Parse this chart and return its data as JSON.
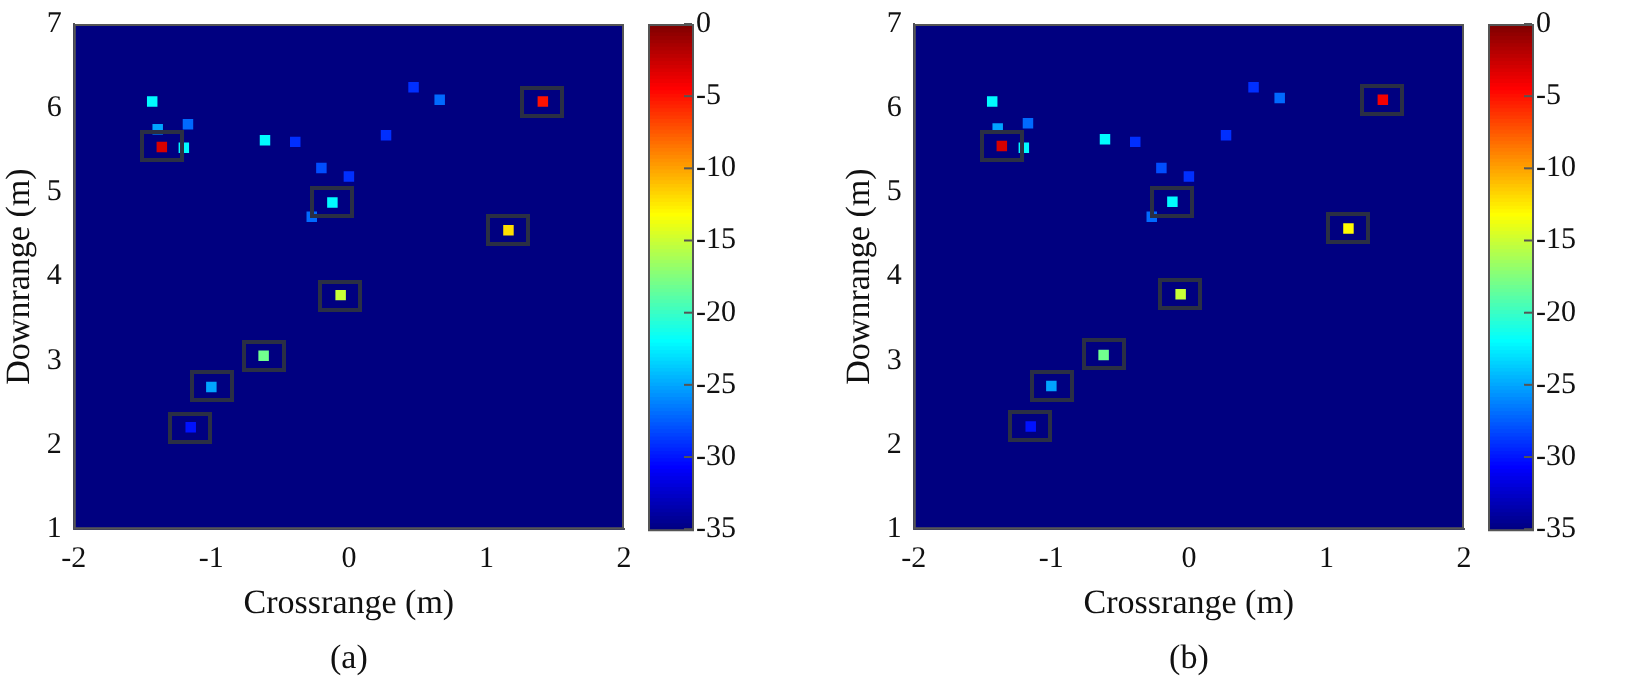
{
  "chart_data": [
    {
      "type": "scatter",
      "xlabel": "Crossrange (m)",
      "ylabel": "Downrange (m)",
      "annotations": [
        "(a)"
      ],
      "xlim": [
        -2,
        2
      ],
      "xticks": [
        -2,
        -1,
        0,
        1,
        2
      ],
      "ylim": [
        1,
        7
      ],
      "yticks": [
        1,
        2,
        3,
        4,
        5,
        6,
        7
      ],
      "clim": [
        -35,
        0
      ],
      "cticks": [
        -35,
        -30,
        -25,
        -20,
        -15,
        -10,
        -5,
        0
      ],
      "marker": "square",
      "grid": false,
      "legend": false,
      "series": [
        {
          "x": [
            -1.36,
            1.41,
            -0.12,
            1.16,
            -0.06,
            -0.62,
            -1.0,
            -1.15
          ],
          "values": [
            5.54,
            6.08,
            4.88,
            4.55,
            3.78,
            3.06,
            2.69,
            2.21
          ],
          "cvalues": [
            -3,
            -5,
            -22,
            -12,
            -15,
            -18,
            -25,
            -30
          ],
          "colors": [
            "#d70000",
            "#ff1200",
            "#00fbff",
            "#ffde00",
            "#c8ff37",
            "#71ff8e",
            "#00a4ff",
            "#0012ff"
          ]
        },
        {
          "x": [
            -1.43,
            -1.2,
            -1.39,
            -1.17,
            -0.61,
            -0.39,
            0.27,
            0.47,
            0.66,
            -0.2,
            0.0,
            -0.27
          ],
          "values": [
            6.08,
            5.53,
            5.75,
            5.81,
            5.62,
            5.6,
            5.68,
            6.25,
            6.1,
            5.29,
            5.19,
            4.71
          ],
          "cvalues": [
            -22,
            -22,
            -25,
            -27,
            -22,
            -29,
            -29,
            -29,
            -27,
            -28,
            -29,
            -27
          ],
          "colors": [
            "#00fbff",
            "#00fbff",
            "#00a4ff",
            "#006aff",
            "#00fbff",
            "#002fff",
            "#002fff",
            "#002fff",
            "#006aff",
            "#004dff",
            "#002fff",
            "#006aff"
          ]
        }
      ]
    },
    {
      "type": "scatter",
      "xlabel": "Crossrange (m)",
      "ylabel": "Downrange (m)",
      "annotations": [
        "(b)"
      ],
      "xlim": [
        -2,
        2
      ],
      "xticks": [
        -2,
        -1,
        0,
        1,
        2
      ],
      "ylim": [
        1,
        7
      ],
      "yticks": [
        1,
        2,
        3,
        4,
        5,
        6,
        7
      ],
      "clim": [
        -35,
        0
      ],
      "cticks": [
        -35,
        -30,
        -25,
        -20,
        -15,
        -10,
        -5,
        0
      ],
      "marker": "square",
      "grid": false,
      "legend": false,
      "series": [
        {
          "x": [
            -1.36,
            1.41,
            -0.12,
            1.16,
            -0.06,
            -0.62,
            -1.0,
            -1.15
          ],
          "values": [
            5.55,
            6.1,
            4.89,
            4.57,
            3.79,
            3.07,
            2.7,
            2.22
          ],
          "cvalues": [
            -3,
            -4,
            -22,
            -13,
            -15,
            -18,
            -25,
            -30
          ],
          "colors": [
            "#d70000",
            "#f40000",
            "#00fbff",
            "#fffb00",
            "#c8ff37",
            "#71ff8e",
            "#00a4ff",
            "#0012ff"
          ]
        },
        {
          "x": [
            -1.43,
            -1.2,
            -1.39,
            -1.17,
            -0.61,
            -0.39,
            0.27,
            0.47,
            0.66,
            -0.2,
            0.0,
            -0.27
          ],
          "values": [
            6.08,
            5.53,
            5.76,
            5.82,
            5.63,
            5.6,
            5.68,
            6.25,
            6.12,
            5.29,
            5.19,
            4.71
          ],
          "cvalues": [
            -22,
            -22,
            -25,
            -27,
            -22,
            -29,
            -29,
            -29,
            -27,
            -28,
            -29,
            -27
          ],
          "colors": [
            "#00fbff",
            "#00fbff",
            "#00a4ff",
            "#006aff",
            "#00fbff",
            "#002fff",
            "#002fff",
            "#002fff",
            "#006aff",
            "#004dff",
            "#002fff",
            "#006aff"
          ]
        }
      ]
    }
  ]
}
